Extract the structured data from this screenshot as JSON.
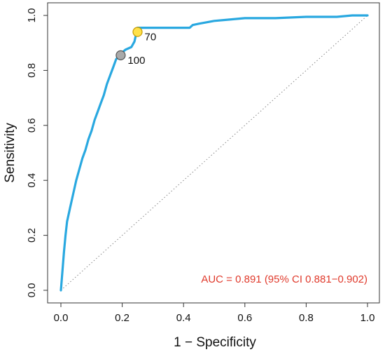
{
  "chart_data": {
    "type": "line",
    "xlabel": "1 − Specificity",
    "ylabel": "Sensitivity",
    "xlim": [
      0,
      1
    ],
    "ylim": [
      0,
      1
    ],
    "x_ticks": [
      "0.0",
      "0.2",
      "0.4",
      "0.6",
      "0.8",
      "1.0"
    ],
    "y_ticks": [
      "0.0",
      "0.2",
      "0.4",
      "0.6",
      "0.8",
      "1.0"
    ],
    "grid": false,
    "series": [
      {
        "color": "#29a8e0",
        "x": [
          0.0,
          0.005,
          0.01,
          0.015,
          0.02,
          0.03,
          0.04,
          0.05,
          0.06,
          0.07,
          0.08,
          0.09,
          0.1,
          0.11,
          0.12,
          0.13,
          0.14,
          0.15,
          0.16,
          0.17,
          0.18,
          0.19,
          0.2,
          0.21,
          0.22,
          0.23,
          0.24,
          0.245,
          0.25,
          0.3,
          0.35,
          0.4,
          0.42,
          0.43,
          0.45,
          0.5,
          0.55,
          0.6,
          0.7,
          0.8,
          0.9,
          0.95,
          1.0
        ],
        "y": [
          0.0,
          0.07,
          0.14,
          0.2,
          0.25,
          0.3,
          0.35,
          0.4,
          0.44,
          0.48,
          0.51,
          0.55,
          0.58,
          0.62,
          0.65,
          0.68,
          0.71,
          0.75,
          0.78,
          0.81,
          0.84,
          0.855,
          0.865,
          0.875,
          0.88,
          0.885,
          0.905,
          0.93,
          0.955,
          0.955,
          0.955,
          0.955,
          0.955,
          0.965,
          0.97,
          0.98,
          0.985,
          0.99,
          0.99,
          0.995,
          0.995,
          1.0,
          1.0
        ]
      }
    ],
    "reference_line": {
      "x": [
        0,
        1
      ],
      "y": [
        0,
        1
      ],
      "style": "dotted",
      "color": "#888888"
    },
    "points": [
      {
        "label": "70",
        "x": 0.25,
        "y": 0.94,
        "fill": "#ffe14a",
        "stroke": "#c79a00"
      },
      {
        "label": "100",
        "x": 0.195,
        "y": 0.855,
        "fill": "#a9a9a9",
        "stroke": "#555555"
      }
    ],
    "annotation": {
      "text": "AUC = 0.891 (95% CI 0.881−0.902)",
      "color": "#e03a2c",
      "placement": "bottom-right"
    }
  }
}
